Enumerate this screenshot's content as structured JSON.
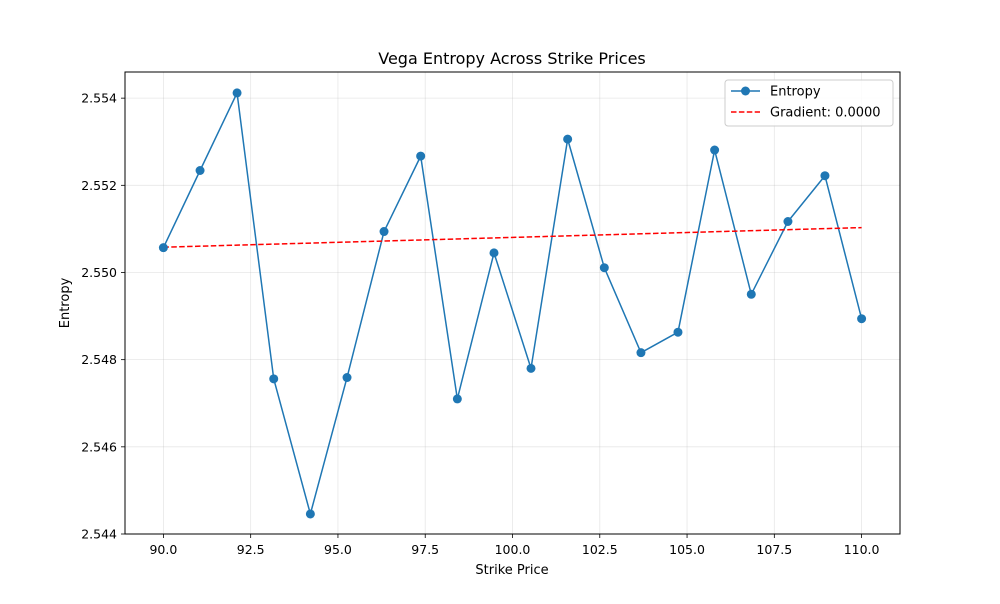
{
  "chart_data": {
    "type": "line",
    "title": "Vega Entropy Across Strike Prices",
    "xlabel": "Strike Price",
    "ylabel": "Entropy",
    "xlim": [
      88.9,
      111.1
    ],
    "ylim": [
      2.544,
      2.5546
    ],
    "xticks": [
      90.0,
      92.5,
      95.0,
      97.5,
      100.0,
      102.5,
      105.0,
      107.5,
      110.0
    ],
    "xtick_labels": [
      "90.0",
      "92.5",
      "95.0",
      "97.5",
      "100.0",
      "102.5",
      "105.0",
      "107.5",
      "110.0"
    ],
    "yticks": [
      2.544,
      2.546,
      2.548,
      2.55,
      2.552,
      2.554
    ],
    "ytick_labels": [
      "2.544",
      "2.546",
      "2.548",
      "2.550",
      "2.552",
      "2.554"
    ],
    "grid": true,
    "legend_position": "top-right",
    "series": [
      {
        "name": "Entropy",
        "style": "solid-line-with-circle-markers",
        "color": "#1f77b4",
        "x": [
          90.0,
          91.05,
          92.11,
          93.16,
          94.21,
          95.26,
          96.32,
          97.37,
          98.42,
          99.47,
          100.53,
          101.58,
          102.63,
          103.68,
          104.74,
          105.79,
          106.84,
          107.89,
          108.95,
          110.0
        ],
        "y": [
          2.55057,
          2.55234,
          2.55412,
          2.54756,
          2.54446,
          2.54759,
          2.55094,
          2.55267,
          2.5471,
          2.55045,
          2.5478,
          2.55306,
          2.55011,
          2.54816,
          2.54863,
          2.55281,
          2.5495,
          2.55117,
          2.55222,
          2.54894
        ]
      },
      {
        "name": "Gradient: 0.0000",
        "style": "dashed-line",
        "color": "#ff0000",
        "x": [
          90.0,
          110.0
        ],
        "y": [
          2.55058,
          2.55103
        ]
      }
    ]
  }
}
